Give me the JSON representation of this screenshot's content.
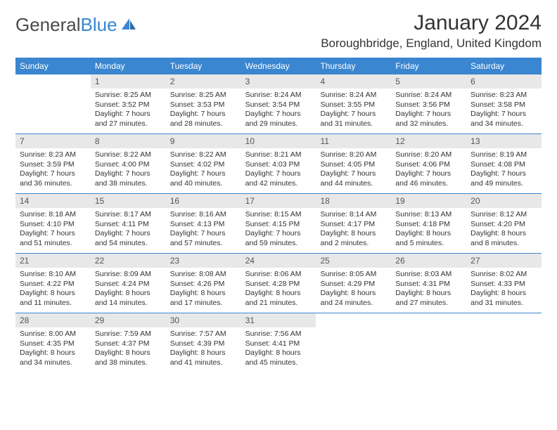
{
  "logo": {
    "part1": "General",
    "part2": "Blue"
  },
  "title": "January 2024",
  "location": "Boroughbridge, England, United Kingdom",
  "colors": {
    "header_bg": "#3a86d0",
    "header_text": "#ffffff",
    "daynum_bg": "#e8e8e8",
    "daynum_text": "#555555",
    "text": "#333333",
    "divider": "#3a86d0"
  },
  "weekdays": [
    "Sunday",
    "Monday",
    "Tuesday",
    "Wednesday",
    "Thursday",
    "Friday",
    "Saturday"
  ],
  "weeks": [
    [
      {
        "num": "",
        "sunrise": "",
        "sunset": "",
        "daylight": ""
      },
      {
        "num": "1",
        "sunrise": "Sunrise: 8:25 AM",
        "sunset": "Sunset: 3:52 PM",
        "daylight": "Daylight: 7 hours and 27 minutes."
      },
      {
        "num": "2",
        "sunrise": "Sunrise: 8:25 AM",
        "sunset": "Sunset: 3:53 PM",
        "daylight": "Daylight: 7 hours and 28 minutes."
      },
      {
        "num": "3",
        "sunrise": "Sunrise: 8:24 AM",
        "sunset": "Sunset: 3:54 PM",
        "daylight": "Daylight: 7 hours and 29 minutes."
      },
      {
        "num": "4",
        "sunrise": "Sunrise: 8:24 AM",
        "sunset": "Sunset: 3:55 PM",
        "daylight": "Daylight: 7 hours and 31 minutes."
      },
      {
        "num": "5",
        "sunrise": "Sunrise: 8:24 AM",
        "sunset": "Sunset: 3:56 PM",
        "daylight": "Daylight: 7 hours and 32 minutes."
      },
      {
        "num": "6",
        "sunrise": "Sunrise: 8:23 AM",
        "sunset": "Sunset: 3:58 PM",
        "daylight": "Daylight: 7 hours and 34 minutes."
      }
    ],
    [
      {
        "num": "7",
        "sunrise": "Sunrise: 8:23 AM",
        "sunset": "Sunset: 3:59 PM",
        "daylight": "Daylight: 7 hours and 36 minutes."
      },
      {
        "num": "8",
        "sunrise": "Sunrise: 8:22 AM",
        "sunset": "Sunset: 4:00 PM",
        "daylight": "Daylight: 7 hours and 38 minutes."
      },
      {
        "num": "9",
        "sunrise": "Sunrise: 8:22 AM",
        "sunset": "Sunset: 4:02 PM",
        "daylight": "Daylight: 7 hours and 40 minutes."
      },
      {
        "num": "10",
        "sunrise": "Sunrise: 8:21 AM",
        "sunset": "Sunset: 4:03 PM",
        "daylight": "Daylight: 7 hours and 42 minutes."
      },
      {
        "num": "11",
        "sunrise": "Sunrise: 8:20 AM",
        "sunset": "Sunset: 4:05 PM",
        "daylight": "Daylight: 7 hours and 44 minutes."
      },
      {
        "num": "12",
        "sunrise": "Sunrise: 8:20 AM",
        "sunset": "Sunset: 4:06 PM",
        "daylight": "Daylight: 7 hours and 46 minutes."
      },
      {
        "num": "13",
        "sunrise": "Sunrise: 8:19 AM",
        "sunset": "Sunset: 4:08 PM",
        "daylight": "Daylight: 7 hours and 49 minutes."
      }
    ],
    [
      {
        "num": "14",
        "sunrise": "Sunrise: 8:18 AM",
        "sunset": "Sunset: 4:10 PM",
        "daylight": "Daylight: 7 hours and 51 minutes."
      },
      {
        "num": "15",
        "sunrise": "Sunrise: 8:17 AM",
        "sunset": "Sunset: 4:11 PM",
        "daylight": "Daylight: 7 hours and 54 minutes."
      },
      {
        "num": "16",
        "sunrise": "Sunrise: 8:16 AM",
        "sunset": "Sunset: 4:13 PM",
        "daylight": "Daylight: 7 hours and 57 minutes."
      },
      {
        "num": "17",
        "sunrise": "Sunrise: 8:15 AM",
        "sunset": "Sunset: 4:15 PM",
        "daylight": "Daylight: 7 hours and 59 minutes."
      },
      {
        "num": "18",
        "sunrise": "Sunrise: 8:14 AM",
        "sunset": "Sunset: 4:17 PM",
        "daylight": "Daylight: 8 hours and 2 minutes."
      },
      {
        "num": "19",
        "sunrise": "Sunrise: 8:13 AM",
        "sunset": "Sunset: 4:18 PM",
        "daylight": "Daylight: 8 hours and 5 minutes."
      },
      {
        "num": "20",
        "sunrise": "Sunrise: 8:12 AM",
        "sunset": "Sunset: 4:20 PM",
        "daylight": "Daylight: 8 hours and 8 minutes."
      }
    ],
    [
      {
        "num": "21",
        "sunrise": "Sunrise: 8:10 AM",
        "sunset": "Sunset: 4:22 PM",
        "daylight": "Daylight: 8 hours and 11 minutes."
      },
      {
        "num": "22",
        "sunrise": "Sunrise: 8:09 AM",
        "sunset": "Sunset: 4:24 PM",
        "daylight": "Daylight: 8 hours and 14 minutes."
      },
      {
        "num": "23",
        "sunrise": "Sunrise: 8:08 AM",
        "sunset": "Sunset: 4:26 PM",
        "daylight": "Daylight: 8 hours and 17 minutes."
      },
      {
        "num": "24",
        "sunrise": "Sunrise: 8:06 AM",
        "sunset": "Sunset: 4:28 PM",
        "daylight": "Daylight: 8 hours and 21 minutes."
      },
      {
        "num": "25",
        "sunrise": "Sunrise: 8:05 AM",
        "sunset": "Sunset: 4:29 PM",
        "daylight": "Daylight: 8 hours and 24 minutes."
      },
      {
        "num": "26",
        "sunrise": "Sunrise: 8:03 AM",
        "sunset": "Sunset: 4:31 PM",
        "daylight": "Daylight: 8 hours and 27 minutes."
      },
      {
        "num": "27",
        "sunrise": "Sunrise: 8:02 AM",
        "sunset": "Sunset: 4:33 PM",
        "daylight": "Daylight: 8 hours and 31 minutes."
      }
    ],
    [
      {
        "num": "28",
        "sunrise": "Sunrise: 8:00 AM",
        "sunset": "Sunset: 4:35 PM",
        "daylight": "Daylight: 8 hours and 34 minutes."
      },
      {
        "num": "29",
        "sunrise": "Sunrise: 7:59 AM",
        "sunset": "Sunset: 4:37 PM",
        "daylight": "Daylight: 8 hours and 38 minutes."
      },
      {
        "num": "30",
        "sunrise": "Sunrise: 7:57 AM",
        "sunset": "Sunset: 4:39 PM",
        "daylight": "Daylight: 8 hours and 41 minutes."
      },
      {
        "num": "31",
        "sunrise": "Sunrise: 7:56 AM",
        "sunset": "Sunset: 4:41 PM",
        "daylight": "Daylight: 8 hours and 45 minutes."
      },
      {
        "num": "",
        "sunrise": "",
        "sunset": "",
        "daylight": ""
      },
      {
        "num": "",
        "sunrise": "",
        "sunset": "",
        "daylight": ""
      },
      {
        "num": "",
        "sunrise": "",
        "sunset": "",
        "daylight": ""
      }
    ]
  ]
}
